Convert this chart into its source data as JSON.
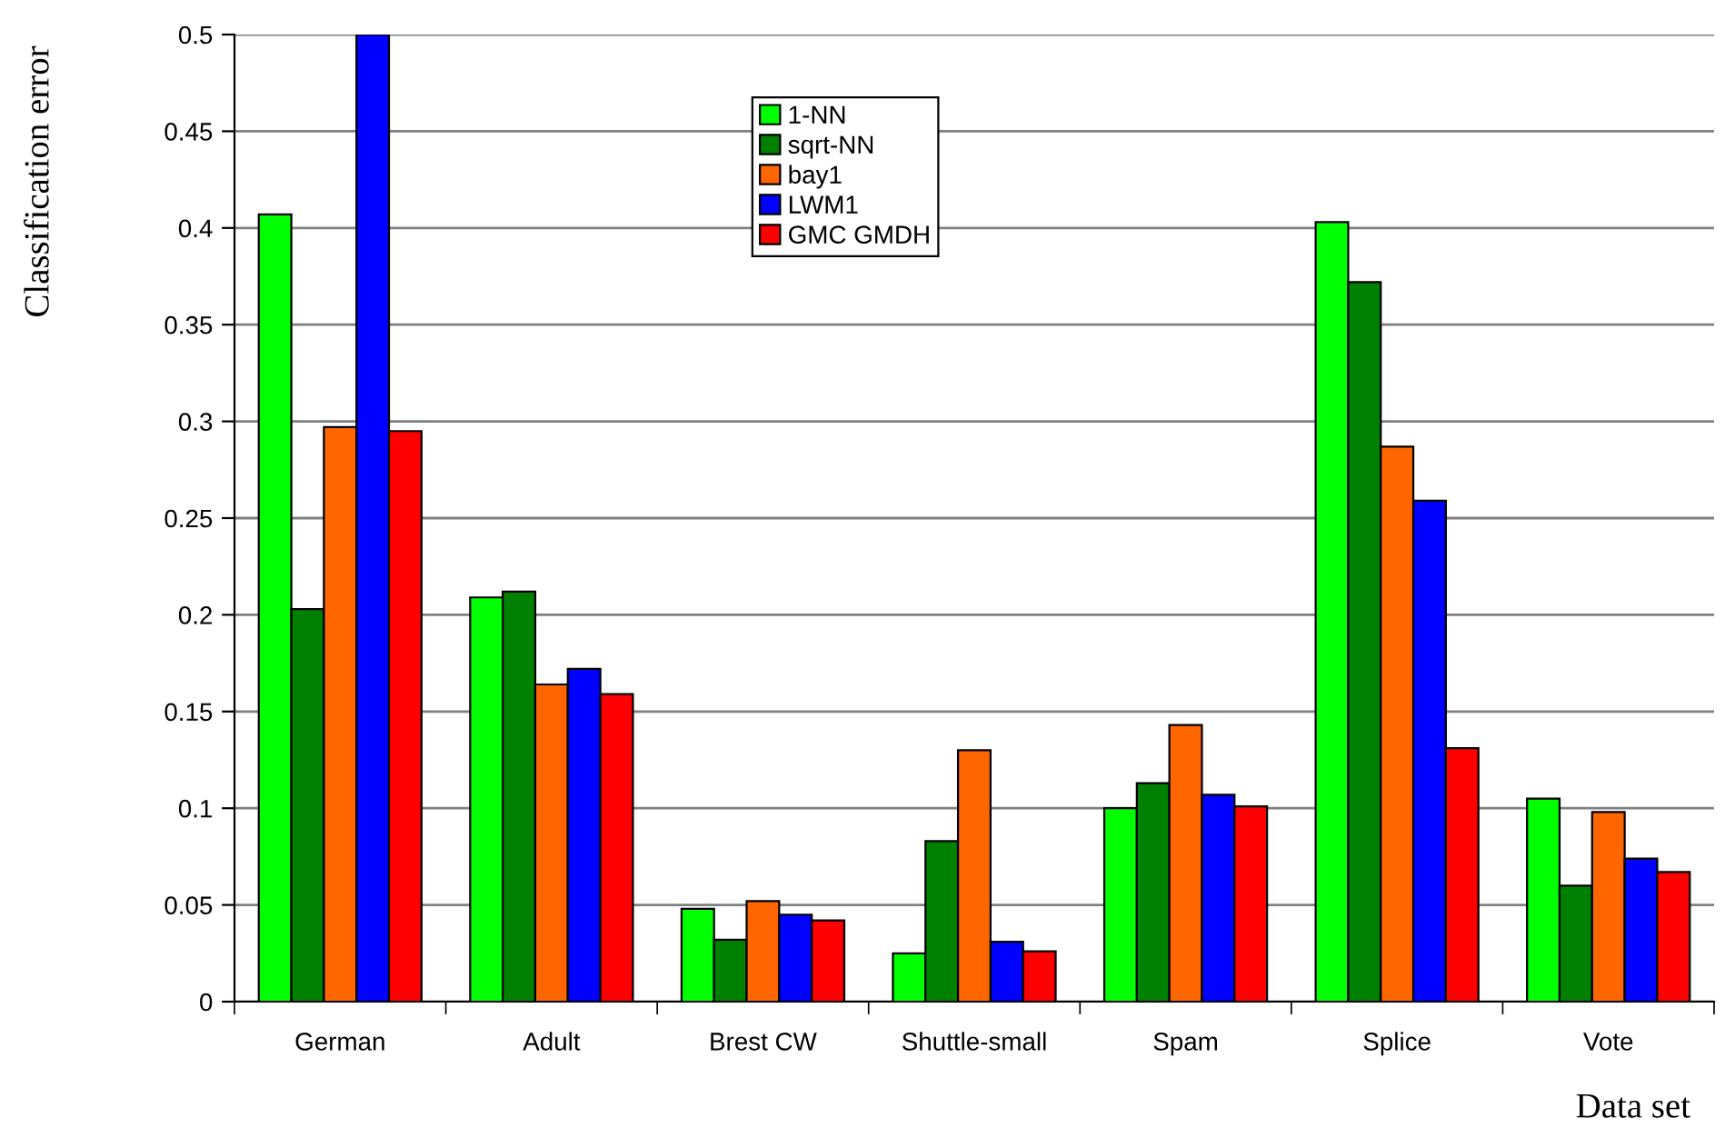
{
  "chart_data": {
    "type": "bar",
    "xlabel": "Data set",
    "ylabel": "Classification error",
    "categories": [
      "German",
      "Adult",
      "Brest CW",
      "Shuttle-small",
      "Spam",
      "Splice",
      "Vote"
    ],
    "series": [
      {
        "name": "1-NN",
        "color": "#00ff00",
        "values": [
          0.407,
          0.209,
          0.048,
          0.025,
          0.1,
          0.403,
          0.105
        ]
      },
      {
        "name": "sqrt-NN",
        "color": "#008000",
        "values": [
          0.203,
          0.212,
          0.032,
          0.083,
          0.113,
          0.372,
          0.06
        ]
      },
      {
        "name": "bay1",
        "color": "#ff6600",
        "values": [
          0.297,
          0.164,
          0.052,
          0.13,
          0.143,
          0.287,
          0.098
        ]
      },
      {
        "name": "LWM1",
        "color": "#0000ff",
        "values": [
          0.5,
          0.172,
          0.045,
          0.031,
          0.107,
          0.259,
          0.074
        ]
      },
      {
        "name": "GMC GMDH",
        "color": "#ff0000",
        "values": [
          0.295,
          0.159,
          0.042,
          0.026,
          0.101,
          0.131,
          0.067
        ]
      }
    ],
    "ylim": [
      0,
      0.5
    ],
    "yticks": [
      0,
      0.05,
      0.1,
      0.15,
      0.2,
      0.25,
      0.3,
      0.35,
      0.4,
      0.45,
      0.5
    ],
    "grid": "y",
    "legend": "top"
  }
}
